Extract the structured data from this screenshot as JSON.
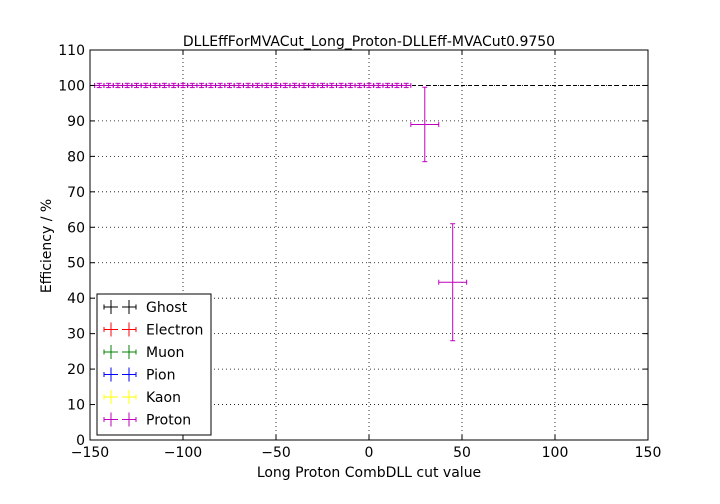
{
  "chart_data": {
    "type": "scatter",
    "title": "DLLEffForMVACut_Long_Proton-DLLEff-MVACut0.9750",
    "xlabel": "Long Proton CombDLL cut value",
    "ylabel": "Efficiency / %",
    "xlim": [
      -150,
      150
    ],
    "ylim": [
      0,
      110
    ],
    "xticks": [
      -150,
      -100,
      -50,
      0,
      50,
      100,
      150
    ],
    "yticks": [
      0,
      10,
      20,
      30,
      40,
      50,
      60,
      70,
      80,
      90,
      100,
      110
    ],
    "grid": true,
    "reference_line_y": 100,
    "legend_position": "lower-left",
    "legend": [
      "Ghost",
      "Electron",
      "Muon",
      "Pion",
      "Kaon",
      "Proton"
    ],
    "series": [
      {
        "name": "Ghost",
        "color": "#000000",
        "points": []
      },
      {
        "name": "Electron",
        "color": "#ff0000",
        "points": []
      },
      {
        "name": "Muon",
        "color": "#008000",
        "points": []
      },
      {
        "name": "Pion",
        "color": "#0000ff",
        "points": []
      },
      {
        "name": "Kaon",
        "color": "#ffff00",
        "points": []
      },
      {
        "name": "Proton",
        "color": "#bf00bf",
        "points": [
          {
            "x": -145,
            "y": 100,
            "xerr": 2.5,
            "yerr": 0.6
          },
          {
            "x": -140,
            "y": 100,
            "xerr": 2.5,
            "yerr": 0.6
          },
          {
            "x": -135,
            "y": 100,
            "xerr": 2.5,
            "yerr": 0.6
          },
          {
            "x": -130,
            "y": 100,
            "xerr": 2.5,
            "yerr": 0.6
          },
          {
            "x": -125,
            "y": 100,
            "xerr": 2.5,
            "yerr": 0.6
          },
          {
            "x": -120,
            "y": 100,
            "xerr": 2.5,
            "yerr": 0.6
          },
          {
            "x": -115,
            "y": 100,
            "xerr": 2.5,
            "yerr": 0.6
          },
          {
            "x": -110,
            "y": 100,
            "xerr": 2.5,
            "yerr": 0.6
          },
          {
            "x": -105,
            "y": 100,
            "xerr": 2.5,
            "yerr": 0.6
          },
          {
            "x": -100,
            "y": 100,
            "xerr": 2.5,
            "yerr": 0.6
          },
          {
            "x": -95,
            "y": 100,
            "xerr": 2.5,
            "yerr": 0.6
          },
          {
            "x": -90,
            "y": 100,
            "xerr": 2.5,
            "yerr": 0.6
          },
          {
            "x": -85,
            "y": 100,
            "xerr": 2.5,
            "yerr": 0.6
          },
          {
            "x": -80,
            "y": 100,
            "xerr": 2.5,
            "yerr": 0.6
          },
          {
            "x": -75,
            "y": 100,
            "xerr": 2.5,
            "yerr": 0.6
          },
          {
            "x": -70,
            "y": 100,
            "xerr": 2.5,
            "yerr": 0.6
          },
          {
            "x": -65,
            "y": 100,
            "xerr": 2.5,
            "yerr": 0.6
          },
          {
            "x": -60,
            "y": 100,
            "xerr": 2.5,
            "yerr": 0.6
          },
          {
            "x": -55,
            "y": 100,
            "xerr": 2.5,
            "yerr": 0.6
          },
          {
            "x": -50,
            "y": 100,
            "xerr": 2.5,
            "yerr": 0.6
          },
          {
            "x": -45,
            "y": 100,
            "xerr": 2.5,
            "yerr": 0.6
          },
          {
            "x": -40,
            "y": 100,
            "xerr": 2.5,
            "yerr": 0.6
          },
          {
            "x": -35,
            "y": 100,
            "xerr": 2.5,
            "yerr": 0.6
          },
          {
            "x": -30,
            "y": 100,
            "xerr": 2.5,
            "yerr": 0.6
          },
          {
            "x": -25,
            "y": 100,
            "xerr": 2.5,
            "yerr": 0.6
          },
          {
            "x": -20,
            "y": 100,
            "xerr": 2.5,
            "yerr": 0.6
          },
          {
            "x": -15,
            "y": 100,
            "xerr": 2.5,
            "yerr": 0.6
          },
          {
            "x": -10,
            "y": 100,
            "xerr": 2.5,
            "yerr": 0.6
          },
          {
            "x": -5,
            "y": 100,
            "xerr": 2.5,
            "yerr": 0.6
          },
          {
            "x": 0,
            "y": 100,
            "xerr": 2.5,
            "yerr": 0.6
          },
          {
            "x": 5,
            "y": 100,
            "xerr": 2.5,
            "yerr": 0.6
          },
          {
            "x": 10,
            "y": 100,
            "xerr": 2.5,
            "yerr": 0.6
          },
          {
            "x": 15,
            "y": 100,
            "xerr": 2.5,
            "yerr": 0.6
          },
          {
            "x": 20,
            "y": 100,
            "xerr": 2.5,
            "yerr": 0.6
          },
          {
            "x": 30,
            "y": 89,
            "xerr": 7.5,
            "yerr": 10.5
          },
          {
            "x": 45,
            "y": 44.5,
            "xerr": 7.5,
            "yerr": 16.5
          }
        ]
      }
    ]
  }
}
